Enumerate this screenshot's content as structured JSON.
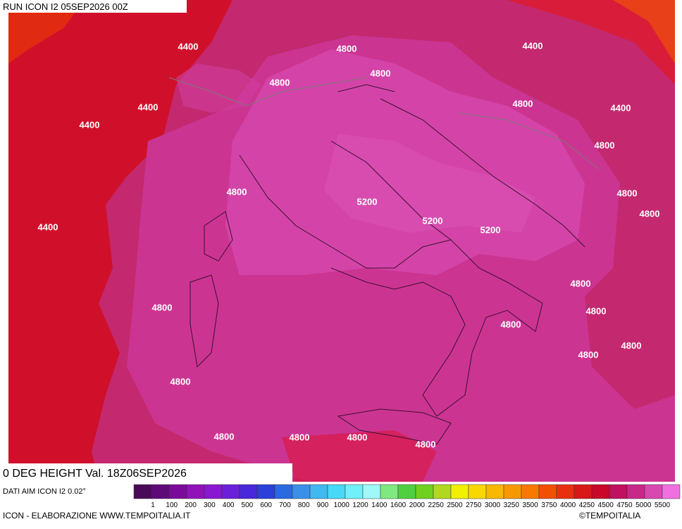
{
  "header": {
    "run": "RUN ICON I2 05SEP2026 00Z"
  },
  "map": {
    "title": "0 DEG HEIGHT Val. 18Z06SEP2026",
    "contour_labels": [
      4400,
      4800,
      4400,
      4800,
      4800,
      4400,
      4800,
      4400,
      4400,
      4800,
      4800,
      4800,
      5200,
      4800,
      5200,
      5200,
      4400,
      4800,
      4800,
      4800,
      4800,
      4800,
      4800,
      4800,
      4800,
      4800,
      4800,
      4800
    ]
  },
  "legend": {
    "caption": "DATI AIM ICON I2 0.02°",
    "labels": [
      "1",
      "100",
      "200",
      "300",
      "400",
      "500",
      "600",
      "700",
      "800",
      "900",
      "1000",
      "1200",
      "1400",
      "1600",
      "2000",
      "2250",
      "2500",
      "2750",
      "3000",
      "3250",
      "3500",
      "3750",
      "4000",
      "4250",
      "4500",
      "4750",
      "5000",
      "5500"
    ],
    "colors": [
      "#4a0a5a",
      "#5e0a78",
      "#7a0a9a",
      "#9012b8",
      "#8a18d0",
      "#6a20d8",
      "#4828d8",
      "#2a40d8",
      "#2a6ae0",
      "#3a90e8",
      "#40b8f0",
      "#48d8f8",
      "#70f0f8",
      "#a0f8f8",
      "#80e880",
      "#50d040",
      "#70d020",
      "#b0d820",
      "#f0f000",
      "#f8d800",
      "#f8b800",
      "#f89800",
      "#f87800",
      "#f05000",
      "#e83010",
      "#d81818",
      "#c80828",
      "#c01060",
      "#c82888",
      "#d848b0",
      "#f070e0"
    ]
  },
  "footer": {
    "left": "ICON - ELABORAZIONE WWW.TEMPOITALIA.IT",
    "right": "©TEMPOITALIA"
  }
}
